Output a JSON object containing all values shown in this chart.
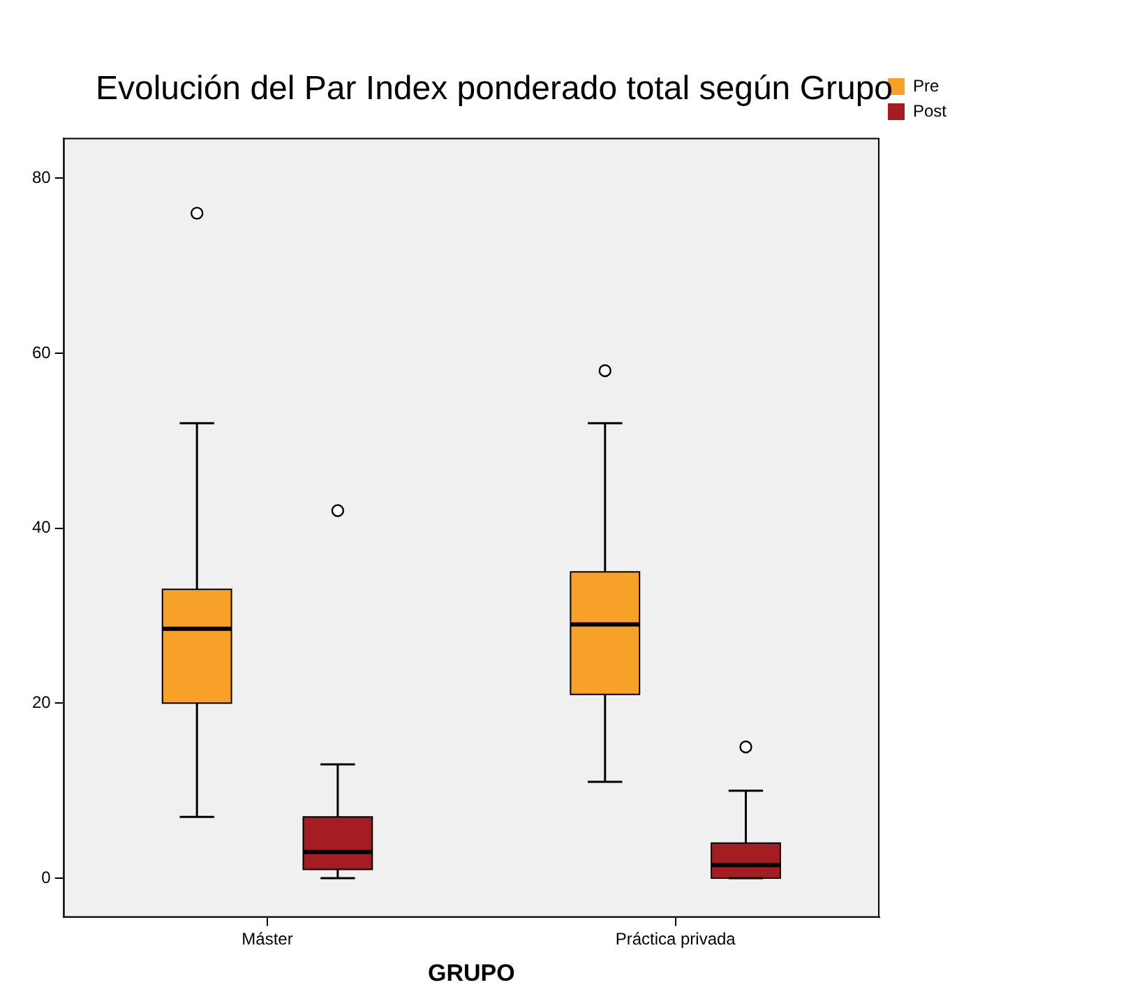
{
  "chart_data": {
    "type": "box",
    "title": "Evolución del Par Index ponderado total según Grupo",
    "xlabel": "GRUPO",
    "categories": [
      "Máster",
      "Práctica privada"
    ],
    "series": [
      {
        "name": "Pre",
        "color": "#f7a128",
        "boxes": [
          {
            "low": 7,
            "q1": 20,
            "median": 28.5,
            "q3": 33,
            "high": 52,
            "outliers": [
              76
            ]
          },
          {
            "low": 11,
            "q1": 21,
            "median": 29,
            "q3": 35,
            "high": 52,
            "outliers": [
              58
            ]
          }
        ]
      },
      {
        "name": "Post",
        "color": "#a31d22",
        "boxes": [
          {
            "low": 0,
            "q1": 1,
            "median": 3,
            "q3": 7,
            "high": 13,
            "outliers": [
              42
            ]
          },
          {
            "low": 0,
            "q1": 0,
            "median": 1.5,
            "q3": 4,
            "high": 10,
            "outliers": [
              15
            ]
          }
        ]
      }
    ],
    "ylim": [
      -4.5,
      84.6
    ],
    "yticks": [
      0,
      20,
      40,
      60,
      80
    ],
    "grid": false,
    "legend": "top right"
  }
}
